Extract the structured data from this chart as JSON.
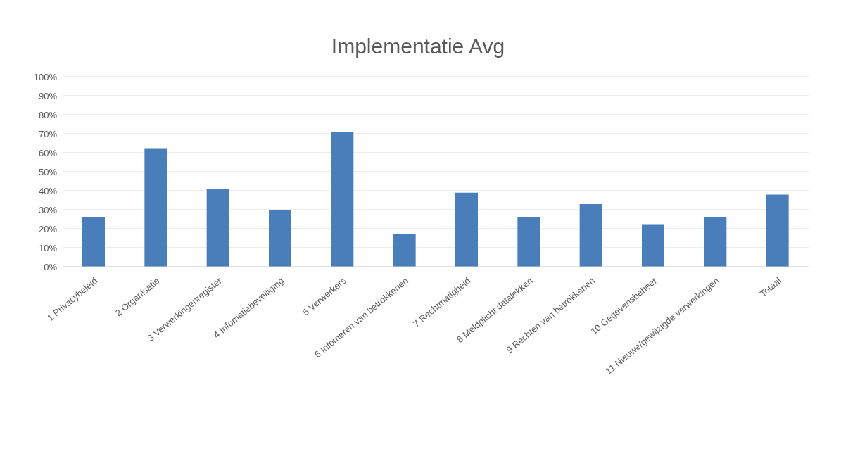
{
  "chart_data": {
    "type": "bar",
    "title": "Implementatie Avg",
    "categories": [
      "1 Privacybeleid",
      "2 Organisatie",
      "3 Verwerkingenregister",
      "4 Infomatiebeveiliging",
      "5 Verwerkers",
      "6 Infomeren van betrokkenen",
      "7 Rechtmatigheid",
      "8 Meldplicht datalekken",
      "9 Rechten van betrokkenen",
      "10 Gegevensbeheer",
      "11 Nieuwe/gewijzigde verwerkingen",
      "Totaal"
    ],
    "values": [
      26,
      62,
      41,
      30,
      71,
      17,
      39,
      26,
      33,
      22,
      26,
      38
    ],
    "color": "#4a7ebb",
    "ylim": [
      0,
      100
    ],
    "yticks": [
      {
        "value": 0,
        "label": "0%"
      },
      {
        "value": 10,
        "label": "10%"
      },
      {
        "value": 20,
        "label": "20%"
      },
      {
        "value": 30,
        "label": "30%"
      },
      {
        "value": 40,
        "label": "40%"
      },
      {
        "value": 50,
        "label": "50%"
      },
      {
        "value": 60,
        "label": "60%"
      },
      {
        "value": 70,
        "label": "70%"
      },
      {
        "value": 80,
        "label": "80%"
      },
      {
        "value": 90,
        "label": "90%"
      },
      {
        "value": 100,
        "label": "100%"
      }
    ],
    "grid": "y",
    "legend": false
  }
}
